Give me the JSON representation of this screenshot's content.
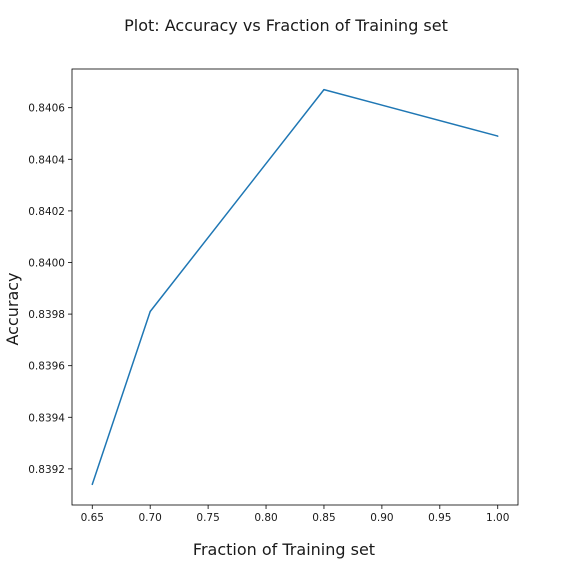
{
  "chart_data": {
    "type": "line",
    "title": "Plot: Accuracy vs Fraction of Training set",
    "xlabel": "Fraction of Training set",
    "ylabel": "Accuracy",
    "x": [
      0.65,
      0.7,
      0.85,
      1.0
    ],
    "series": [
      {
        "values": [
          0.83914,
          0.83981,
          0.84067,
          0.84049
        ],
        "color": "#1f77b4"
      }
    ],
    "xlim": [
      0.6325,
      1.0175
    ],
    "ylim": [
      0.83906,
      0.84075
    ],
    "xticks": [
      0.65,
      0.7,
      0.75,
      0.8,
      0.85,
      0.9,
      0.95,
      1.0
    ],
    "xtick_labels": [
      "0.65",
      "0.70",
      "0.75",
      "0.80",
      "0.85",
      "0.90",
      "0.95",
      "1.00"
    ],
    "yticks": [
      0.8392,
      0.8394,
      0.8396,
      0.8398,
      0.84,
      0.8402,
      0.8404,
      0.8406
    ],
    "ytick_labels": [
      "0.8392",
      "0.8394",
      "0.8396",
      "0.8398",
      "0.8400",
      "0.8402",
      "0.8404",
      "0.8406"
    ],
    "grid": false,
    "legend": "none"
  }
}
